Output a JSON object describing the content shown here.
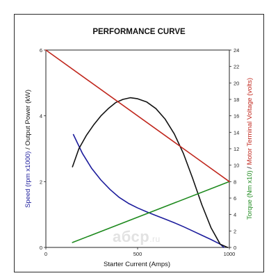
{
  "chart_data": {
    "type": "line",
    "title": "PERFORMANCE CURVE",
    "xlabel": "Starter Current (Amps)",
    "x_ticks": [
      0,
      500,
      1000
    ],
    "xlim": [
      0,
      1000
    ],
    "left_axis": {
      "label_parts": [
        {
          "text": "Speed (rpm x1000)",
          "color": "#1c1c9c"
        },
        {
          "text": " / ",
          "color": "#111111"
        },
        {
          "text": "Output Power (kW)",
          "color": "#111111"
        }
      ],
      "ylim": [
        0,
        6
      ],
      "ticks": [
        0,
        2,
        4,
        6
      ]
    },
    "right_axis": {
      "label_parts": [
        {
          "text": "Torque (Nm x10)",
          "color": "#1e8a1e"
        },
        {
          "text": " / ",
          "color": "#111111"
        },
        {
          "text": "Motor Terminal Voltage (volts)",
          "color": "#c0261c"
        }
      ],
      "ylim": [
        0,
        24
      ],
      "ticks": [
        0,
        2,
        4,
        6,
        8,
        10,
        12,
        14,
        16,
        18,
        20,
        22,
        24
      ]
    },
    "grid": false,
    "series": [
      {
        "key": "speed",
        "axis": "left",
        "color": "#1c1c9c",
        "x": [
          150,
          200,
          250,
          300,
          350,
          400,
          450,
          500,
          550,
          600,
          650,
          700,
          750,
          800,
          850,
          900,
          950,
          970
        ],
        "y": [
          3.43,
          2.85,
          2.4,
          2.05,
          1.76,
          1.52,
          1.34,
          1.2,
          1.08,
          0.97,
          0.86,
          0.75,
          0.63,
          0.5,
          0.37,
          0.24,
          0.1,
          0.0
        ]
      },
      {
        "key": "power",
        "axis": "left",
        "color": "#111111",
        "x": [
          145,
          180,
          220,
          260,
          300,
          340,
          380,
          420,
          460,
          500,
          550,
          600,
          650,
          700,
          750,
          800,
          850,
          900,
          950,
          990
        ],
        "y": [
          2.45,
          3.0,
          3.4,
          3.72,
          4.0,
          4.22,
          4.4,
          4.5,
          4.55,
          4.52,
          4.42,
          4.22,
          3.9,
          3.45,
          2.85,
          2.1,
          1.3,
          0.6,
          0.1,
          0.0
        ]
      },
      {
        "key": "torque",
        "axis": "right",
        "color": "#1e8a1e",
        "x": [
          145,
          1000
        ],
        "y": [
          0.6,
          8.0
        ]
      },
      {
        "key": "voltage",
        "axis": "right",
        "color": "#c0261c",
        "x": [
          0,
          1000
        ],
        "y": [
          24,
          8
        ]
      }
    ]
  },
  "watermark": {
    "text": "aбсp",
    "suffix": ".ru"
  }
}
